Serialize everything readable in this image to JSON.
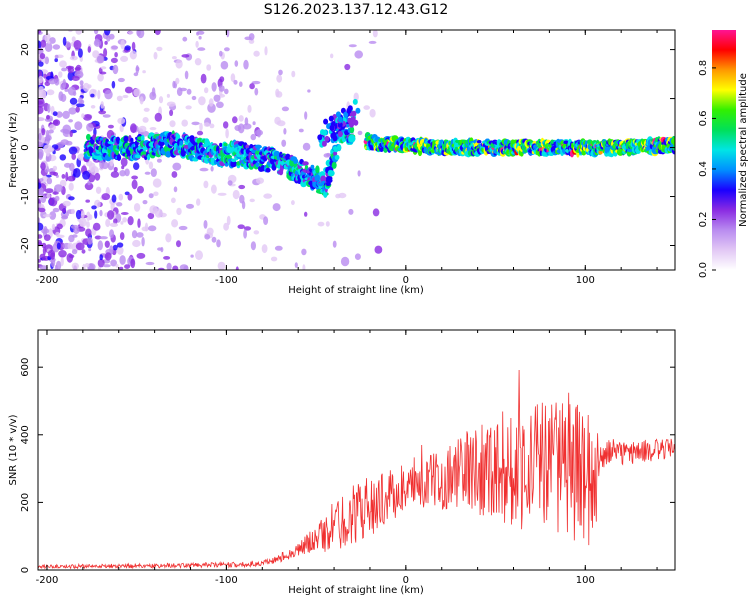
{
  "title": "S126.2023.137.12.43.G12",
  "chart_data": [
    {
      "type": "heatmap",
      "xlabel": "Height of straight line (km)",
      "ylabel": "Frequency (Hz)",
      "xlim": [
        -205,
        150
      ],
      "ylim": [
        -25,
        24
      ],
      "xticks": [
        -200,
        -100,
        0,
        100
      ],
      "yticks": [
        -20,
        -10,
        0,
        10,
        20
      ],
      "colorbar": {
        "label": "Normalized spectral amplitude",
        "range": [
          0.0,
          0.95
        ],
        "ticks": [
          "0.0",
          "0.2",
          "0.4",
          "0.6",
          "0.8"
        ],
        "colormap": [
          "#ffffff",
          "#e2c8f5",
          "#b98bf0",
          "#8a2be2",
          "#1a00ff",
          "#0090ff",
          "#00e5e5",
          "#00e05a",
          "#32f000",
          "#ffff00",
          "#ff9900",
          "#ff0000",
          "#ff1493"
        ]
      },
      "ridge": [
        {
          "x": -175,
          "y": 0.0
        },
        {
          "x": -150,
          "y": 0.0
        },
        {
          "x": -130,
          "y": 0.8
        },
        {
          "x": -110,
          "y": -1.0
        },
        {
          "x": -90,
          "y": -1.5
        },
        {
          "x": -75,
          "y": -2.5
        },
        {
          "x": -65,
          "y": -4.0
        },
        {
          "x": -55,
          "y": -5.5
        },
        {
          "x": -45,
          "y": -7.5
        },
        {
          "x": -35,
          "y": 4.0
        },
        {
          "x": -20,
          "y": 1.0
        },
        {
          "x": 0,
          "y": 0.5
        },
        {
          "x": 20,
          "y": 0.0
        },
        {
          "x": 50,
          "y": 0.0
        },
        {
          "x": 80,
          "y": 0.0
        },
        {
          "x": 100,
          "y": 0.0
        },
        {
          "x": 120,
          "y": 0.0
        },
        {
          "x": 150,
          "y": 0.5
        }
      ]
    },
    {
      "type": "line",
      "xlabel": "Height of straight line (km)",
      "ylabel": "SNR (10 * v/v)",
      "xlim": [
        -205,
        150
      ],
      "ylim": [
        0,
        710
      ],
      "xticks": [
        -200,
        -100,
        0,
        100
      ],
      "yticks": [
        0,
        200,
        400,
        600
      ],
      "color": "#f03030",
      "envelope": {
        "x": [
          -205,
          -160,
          -120,
          -90,
          -75,
          -60,
          -50,
          -40,
          -30,
          -20,
          -10,
          0,
          20,
          40,
          60,
          80,
          95,
          105,
          110,
          130,
          150
        ],
        "mid": [
          10,
          12,
          14,
          16,
          25,
          60,
          95,
          125,
          165,
          190,
          215,
          240,
          270,
          305,
          300,
          320,
          290,
          260,
          340,
          350,
          360
        ],
        "amp": [
          5,
          7,
          7,
          8,
          10,
          20,
          40,
          80,
          90,
          90,
          80,
          60,
          90,
          140,
          180,
          200,
          210,
          190,
          40,
          35,
          30
        ]
      }
    }
  ]
}
